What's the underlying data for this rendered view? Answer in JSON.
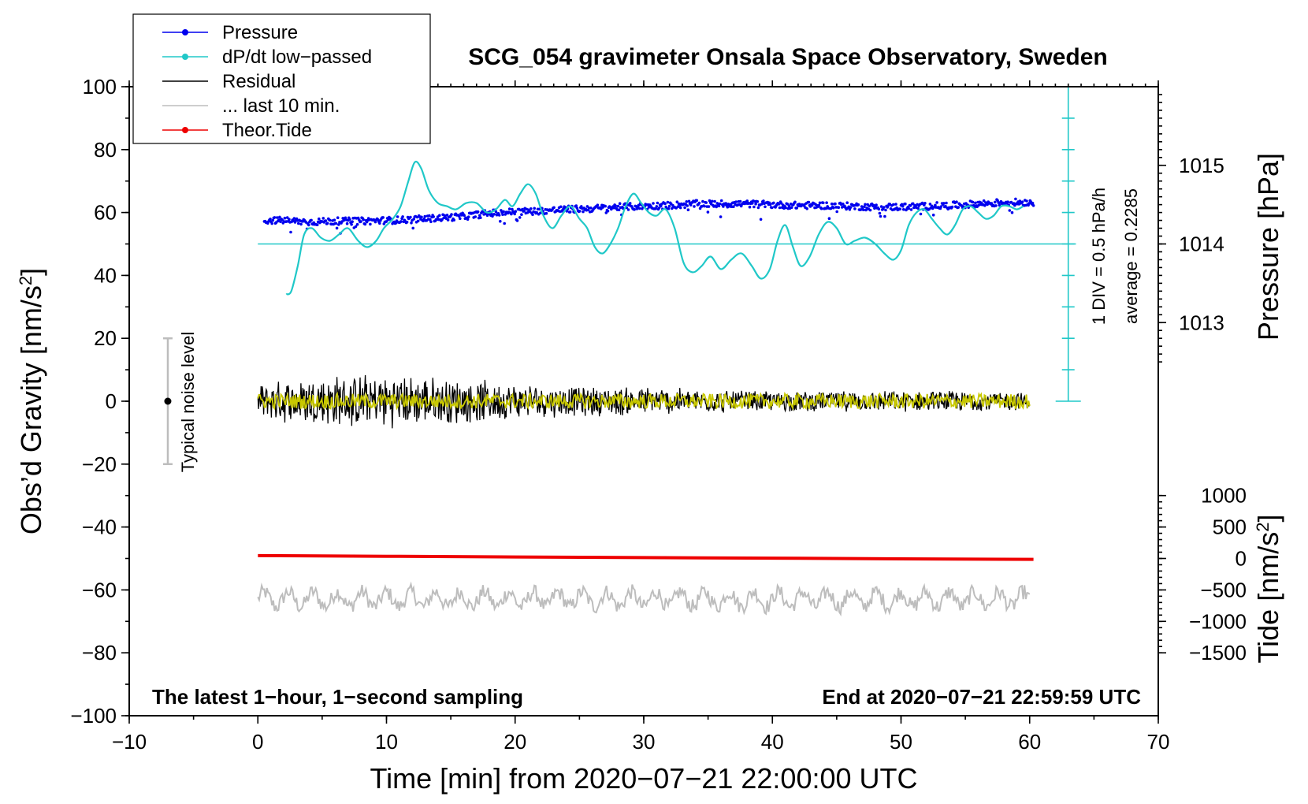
{
  "chart_data": {
    "type": "line",
    "title": "SCG_054 gravimeter Onsala Space Observatory, Sweden",
    "xlabel": "Time [min] from 2020−07−21 22:00:00 UTC",
    "ylabel": "Obs’d Gravity [nm/s",
    "ylabel_sup": "2",
    "ylabel_end": "]",
    "xlim": [
      -10,
      70
    ],
    "ylim": [
      -100,
      100
    ],
    "x_ticks": [
      -10,
      0,
      10,
      20,
      30,
      40,
      50,
      60,
      70
    ],
    "x_tick_labels": [
      "−10",
      "0",
      "10",
      "20",
      "30",
      "40",
      "50",
      "60",
      "70"
    ],
    "y_ticks": [
      -100,
      -80,
      -60,
      -40,
      -20,
      0,
      20,
      40,
      60,
      80,
      100
    ],
    "y_tick_labels": [
      "−100",
      "−80",
      "−60",
      "−40",
      "−20",
      "0",
      "20",
      "40",
      "60",
      "80",
      "100"
    ],
    "pressure_axis": {
      "label": "Pressure [hPa]",
      "ticks": [
        1013,
        1014,
        1015
      ],
      "tick_labels": [
        "1013",
        "1014",
        "1015"
      ],
      "value_at_gravity_50": 1014,
      "hpa_per_gravity_unit": 0.04
    },
    "tide_axis": {
      "label": "Tide [nm/s",
      "label_sup": "2",
      "label_end": "]",
      "ticks": [
        1000,
        500,
        0,
        -500,
        -1000,
        -1500
      ],
      "tick_labels": [
        "1000",
        "500",
        "0",
        "−500",
        "−1000",
        "−1500"
      ],
      "value_at_gravity_minus_50": 0,
      "tide_per_gravity_unit": 50
    },
    "rate_scale": {
      "label": "1 DIV = 0.5 hPa/h",
      "average_label": "average = 0.2285",
      "x": 63,
      "y_range": [
        0,
        100
      ],
      "divisions": 10
    },
    "noise_level": {
      "label": "Typical noise level",
      "x": -7,
      "y_center": 0,
      "y_range": [
        -20,
        20
      ]
    },
    "corner_left": "The latest 1−hour, 1−second sampling",
    "corner_right": "End at 2020−07−21 22:59:59 UTC",
    "legend": [
      {
        "label": "Pressure",
        "color": "#0000ee",
        "marker": true
      },
      {
        "label": "dP/dt low−passed",
        "color": "#20c8c8",
        "marker": true
      },
      {
        "label": "Residual",
        "color": "#000000",
        "marker": false
      },
      {
        "label": "... last 10 min.",
        "color": "#bdbdbd",
        "marker": false
      },
      {
        "label": "Theor.Tide",
        "color": "#ee0000",
        "marker": true
      }
    ],
    "series": [
      {
        "name": "dP/dt low−passed",
        "color": "#20c8c8",
        "x": [
          2.2,
          2.6,
          3.1,
          3.6,
          4.2,
          4.9,
          5.6,
          6.3,
          7.0,
          7.8,
          8.5,
          9.2,
          9.8,
          10.5,
          11.1,
          11.7,
          12.2,
          12.7,
          13.3,
          14.0,
          14.7,
          15.4,
          16.2,
          17.0,
          17.8,
          18.5,
          19.2,
          19.8,
          20.4,
          21.0,
          21.6,
          22.2,
          22.9,
          23.6,
          24.3,
          25.0,
          25.6,
          26.2,
          26.8,
          27.4,
          28.0,
          28.6,
          29.2,
          29.8,
          30.4,
          31.0,
          31.7,
          32.4,
          33.1,
          33.8,
          34.5,
          35.2,
          36.0,
          36.8,
          37.6,
          38.4,
          39.1,
          39.8,
          40.4,
          41.0,
          41.6,
          42.2,
          42.9,
          43.6,
          44.3,
          45.0,
          45.7,
          46.4,
          47.2,
          48.0,
          48.7,
          49.4,
          50.0,
          50.6,
          51.2,
          51.8,
          52.4,
          53.0,
          53.6,
          54.2,
          54.8,
          55.4,
          56.0,
          56.6,
          57.2,
          57.8,
          58.4,
          59.0,
          59.5
        ],
        "values": [
          34,
          35,
          43,
          53,
          55,
          52,
          51,
          53,
          55,
          51,
          49,
          51,
          55,
          58,
          62,
          70,
          76,
          74,
          67,
          63,
          62,
          61,
          63,
          63,
          60,
          61,
          64,
          62,
          66,
          69,
          66,
          59,
          55,
          59,
          62,
          58,
          55,
          49,
          47,
          50,
          55,
          62,
          66,
          63,
          60,
          59,
          61,
          55,
          44,
          41,
          43,
          46,
          42,
          45,
          47,
          43,
          39,
          42,
          51,
          56,
          49,
          43,
          46,
          53,
          57,
          55,
          50,
          51,
          52,
          50,
          47,
          45,
          48,
          56,
          60,
          61,
          58,
          55,
          53,
          56,
          61,
          62,
          60,
          58,
          59,
          62,
          62,
          61,
          62
        ]
      },
      {
        "name": "Pressure",
        "color": "#0000ee",
        "x": [
          0.5,
          2,
          4,
          6,
          8,
          10,
          12,
          14,
          16,
          18,
          20,
          22,
          24,
          26,
          28,
          30,
          32,
          34,
          36,
          38,
          40,
          42,
          44,
          46,
          48,
          50,
          52,
          54,
          56,
          58,
          60.3
        ],
        "values": [
          1014.3,
          1014.3,
          1014.28,
          1014.29,
          1014.29,
          1014.3,
          1014.31,
          1014.33,
          1014.35,
          1014.39,
          1014.41,
          1014.42,
          1014.44,
          1014.45,
          1014.47,
          1014.48,
          1014.49,
          1014.51,
          1014.51,
          1014.51,
          1014.5,
          1014.49,
          1014.49,
          1014.48,
          1014.47,
          1014.47,
          1014.48,
          1014.49,
          1014.51,
          1014.53,
          1014.53
        ]
      },
      {
        "name": "Residual",
        "color": "#000000",
        "x_range": [
          0,
          60
        ],
        "noise_envelope": {
          "x": [
            0,
            5,
            10,
            15,
            20,
            25,
            30,
            35,
            40,
            45,
            50,
            55,
            60
          ],
          "amplitude": [
            6,
            9,
            9,
            8,
            6,
            5,
            5,
            4,
            3.5,
            3.5,
            3.5,
            3.5,
            3
          ]
        }
      },
      {
        "name": "filtered residual",
        "color": "#c8c800",
        "x_range": [
          0,
          60
        ],
        "amplitude": 3
      },
      {
        "name": "... last 10 min.",
        "color": "#bdbdbd",
        "x_range": [
          0,
          60
        ],
        "center": -63,
        "amplitude": 4
      },
      {
        "name": "Theor.Tide",
        "color": "#ee0000",
        "x": [
          0,
          10,
          20,
          30,
          40,
          50,
          60.3
        ],
        "values": [
          45,
          35,
          24,
          14,
          5,
          -6,
          -14
        ]
      }
    ]
  }
}
